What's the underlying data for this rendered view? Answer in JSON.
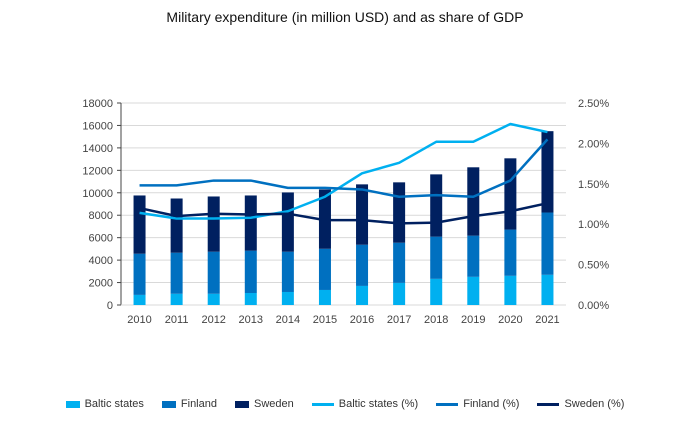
{
  "chart_data": {
    "type": "bar+line",
    "title": "Military expenditure (in million USD) and as share of GDP",
    "categories": [
      "2010",
      "2011",
      "2012",
      "2013",
      "2014",
      "2015",
      "2016",
      "2017",
      "2018",
      "2019",
      "2020",
      "2021"
    ],
    "left_axis": {
      "ylim": [
        0,
        18000
      ],
      "ticks": [
        "0",
        "2000",
        "4000",
        "6000",
        "8000",
        "10000",
        "12000",
        "14000",
        "16000",
        "18000"
      ]
    },
    "right_axis": {
      "ylim": [
        0,
        2.5
      ],
      "ticks": [
        "0.00%",
        "0.50%",
        "1.00%",
        "1.50%",
        "2.00%",
        "2.50%"
      ]
    },
    "bar_series": [
      {
        "name": "Baltic states",
        "color": "#00b0f0",
        "values": [
          900,
          1000,
          1000,
          1070,
          1160,
          1340,
          1700,
          1970,
          2330,
          2510,
          2600,
          2690
        ]
      },
      {
        "name": "Finland",
        "color": "#0070c0",
        "values": [
          3670,
          3660,
          3750,
          3770,
          3590,
          3670,
          3670,
          3580,
          3760,
          3670,
          4120,
          5550
        ]
      },
      {
        "name": "Sweden",
        "color": "#002060",
        "values": [
          5190,
          4830,
          4920,
          4920,
          5280,
          5290,
          5380,
          5380,
          5550,
          6090,
          6350,
          7250
        ]
      }
    ],
    "line_series": [
      {
        "name": "Baltic states (%)",
        "color": "#00b0f0",
        "values": [
          1.14,
          1.07,
          1.07,
          1.08,
          1.16,
          1.34,
          1.63,
          1.76,
          2.02,
          2.02,
          2.24,
          2.14
        ]
      },
      {
        "name": "Finland (%)",
        "color": "#0070c0",
        "values": [
          1.48,
          1.48,
          1.54,
          1.54,
          1.45,
          1.45,
          1.43,
          1.34,
          1.36,
          1.34,
          1.54,
          2.05
        ]
      },
      {
        "name": "Sweden (%)",
        "color": "#002060",
        "values": [
          1.2,
          1.1,
          1.13,
          1.12,
          1.13,
          1.05,
          1.05,
          1.01,
          1.02,
          1.1,
          1.16,
          1.26
        ]
      }
    ],
    "grid": true,
    "legend_position": "bottom"
  }
}
